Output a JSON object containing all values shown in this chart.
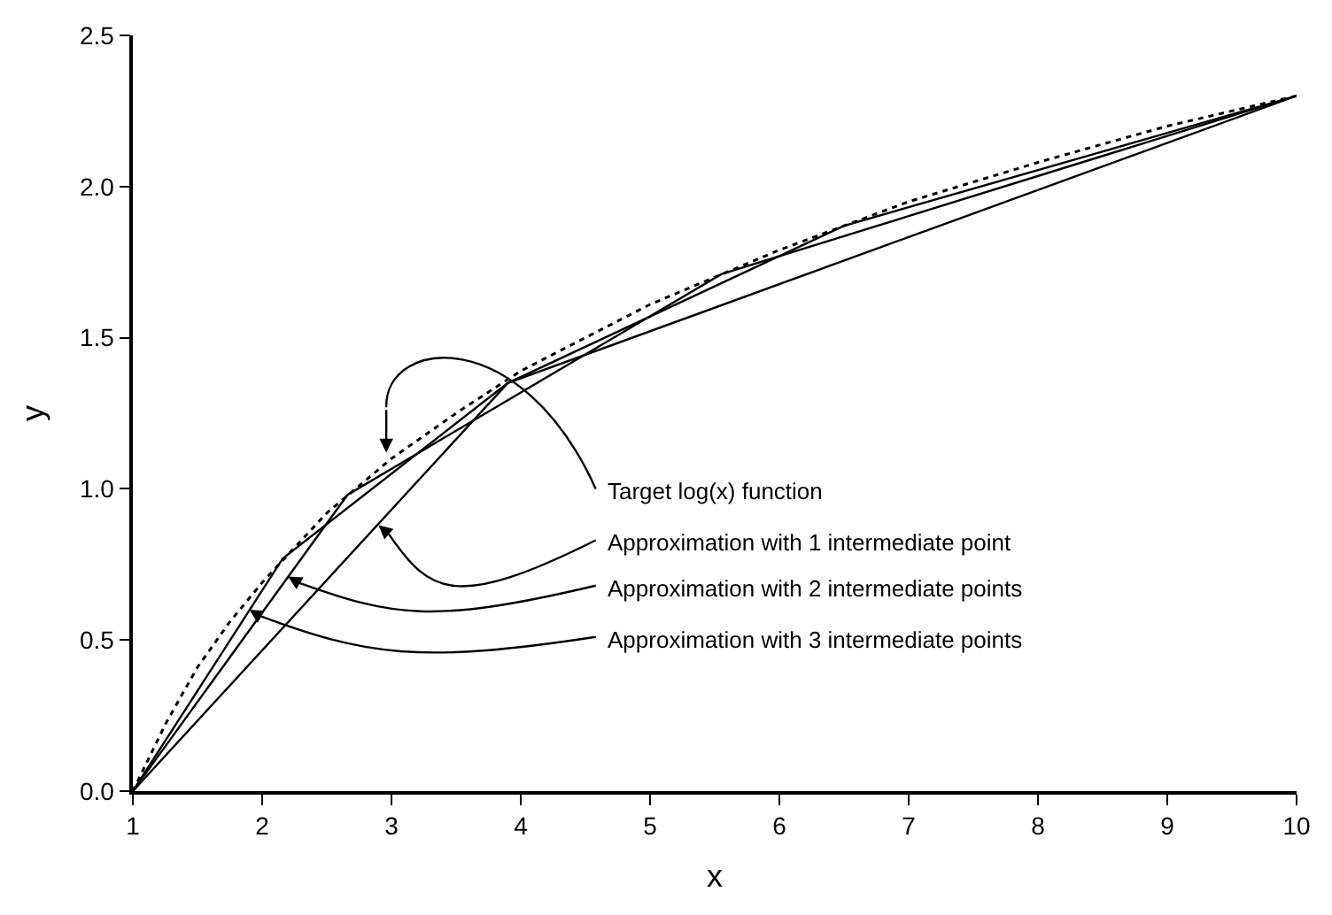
{
  "chart_data": {
    "type": "line",
    "xlabel": "x",
    "ylabel": "y",
    "xlim": [
      1,
      10
    ],
    "ylim": [
      0,
      2.5
    ],
    "xticks": [
      1,
      2,
      3,
      4,
      5,
      6,
      7,
      8,
      9,
      10
    ],
    "yticks": [
      {
        "value": 0,
        "label": "0.0"
      },
      {
        "value": 0.5,
        "label": "0.5"
      },
      {
        "value": 1,
        "label": "1.0"
      },
      {
        "value": 1.5,
        "label": "1.5"
      },
      {
        "value": 2,
        "label": "2.0"
      },
      {
        "value": 2.5,
        "label": "2.5"
      }
    ],
    "marker": "none",
    "series": [
      {
        "color": "#000000",
        "line_style": "dotted",
        "x": [
          1,
          1.25,
          1.5,
          1.75,
          2,
          2.5,
          3,
          3.5,
          4,
          5,
          6,
          7,
          8,
          9,
          10
        ],
        "values": [
          0,
          0.22,
          0.41,
          0.56,
          0.69,
          0.92,
          1.1,
          1.25,
          1.39,
          1.61,
          1.79,
          1.95,
          2.08,
          2.2,
          2.3
        ]
      },
      {
        "color": "#000000",
        "line_style": "solid",
        "x": [
          1,
          3.9,
          10
        ],
        "values": [
          0,
          1.35,
          2.3
        ]
      },
      {
        "color": "#000000",
        "line_style": "solid",
        "x": [
          1,
          2.66,
          5.55,
          10
        ],
        "values": [
          0,
          0.98,
          1.71,
          2.3
        ]
      },
      {
        "color": "#000000",
        "line_style": "solid",
        "x": [
          1,
          2.16,
          3.9,
          6.5,
          10
        ],
        "values": [
          0,
          0.77,
          1.35,
          1.87,
          2.3
        ]
      }
    ],
    "annotations": [
      "Target log(x) function",
      {
        "text": "Approximation with 1 intermediate point",
        "x": 2.9,
        "y": 0.88
      },
      {
        "text": "Approximation with 2 intermediate points",
        "x": 2.2,
        "y": 0.71
      },
      {
        "text": "Approximation with 3 intermediate points",
        "x": 1.9,
        "y": 0.6
      }
    ]
  }
}
